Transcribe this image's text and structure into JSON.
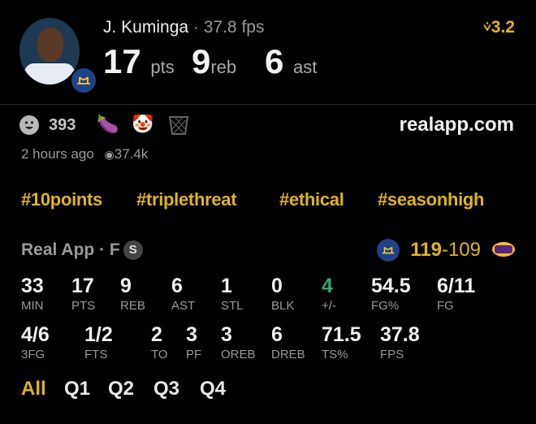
{
  "header": {
    "player_name": "J. Kuminga",
    "separator": " · ",
    "fps": "37.8 fps",
    "pts": "17",
    "pts_label": "pts",
    "reb": "9",
    "reb_label": "reb",
    "ast": "6",
    "ast_label": "ast",
    "rating": "3.2",
    "rating_icon": "fantasy-arrow-icon"
  },
  "reactions": {
    "smile_count": "393",
    "emojis": [
      "🍆",
      "🤡",
      "🧺"
    ],
    "site": "realapp.com"
  },
  "meta": {
    "time": "2 hours ago",
    "views": "37.4k"
  },
  "hashtags": [
    "#10points",
    "#triplethreat",
    "#ethical",
    "#seasonhigh"
  ],
  "game": {
    "source": "Real App · F",
    "badge": "S",
    "home_score": "119",
    "dash": "-",
    "away_score": "109"
  },
  "stats_row1": [
    {
      "value": "33",
      "label": "MIN"
    },
    {
      "value": "17",
      "label": "PTS"
    },
    {
      "value": "9",
      "label": "REB"
    },
    {
      "value": "6",
      "label": "AST"
    },
    {
      "value": "1",
      "label": "STL"
    },
    {
      "value": "0",
      "label": "BLK"
    },
    {
      "value": "4",
      "label": "+/-"
    },
    {
      "value": "54.5",
      "label": "FG%"
    },
    {
      "value": "6/11",
      "label": "FG"
    }
  ],
  "stats_row2": [
    {
      "value": "4/6",
      "label": "3FG"
    },
    {
      "value": "1/2",
      "label": "FTS"
    },
    {
      "value": "2",
      "label": "TO"
    },
    {
      "value": "3",
      "label": "PF"
    },
    {
      "value": "3",
      "label": "OREB"
    },
    {
      "value": "6",
      "label": "DREB"
    },
    {
      "value": "71.5",
      "label": "TS%"
    },
    {
      "value": "37.8",
      "label": "FPS"
    }
  ],
  "tabs": [
    "All",
    "Q1",
    "Q2",
    "Q3",
    "Q4"
  ],
  "colors": {
    "accent": "#e0b420",
    "positive": "#2fa866",
    "background": "#000000"
  }
}
